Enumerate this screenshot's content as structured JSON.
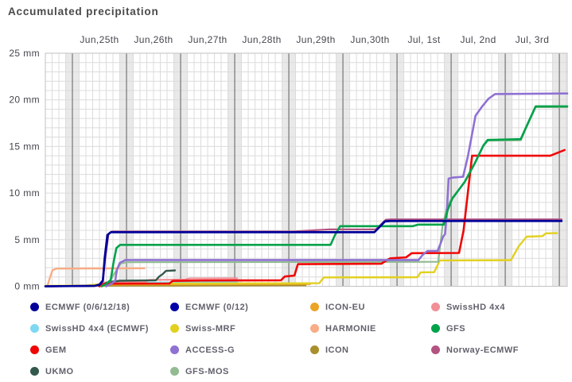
{
  "title": "Accumulated precipitation",
  "chart_data": {
    "type": "line",
    "title": "Accumulated precipitation",
    "y_unit": "mm",
    "ylim": [
      0,
      25
    ],
    "y_ticks": [
      {
        "value": 0,
        "label": "0 mm"
      },
      {
        "value": 5,
        "label": "5 mm"
      },
      {
        "value": 10,
        "label": "10 mm"
      },
      {
        "value": 15,
        "label": "15 mm"
      },
      {
        "value": 20,
        "label": "20 mm"
      },
      {
        "value": 25,
        "label": "25 mm"
      }
    ],
    "x_axis": {
      "unit": "hours_from_start",
      "range": [
        0,
        231.5
      ],
      "minor_step_hours": 3,
      "day_boundaries_hours": [
        12,
        36,
        60,
        84,
        108,
        132,
        156,
        180,
        204,
        228
      ],
      "night_band_halfwidth_hours": 3,
      "labels": [
        {
          "hour": 24,
          "text": "Jun,25th"
        },
        {
          "hour": 48,
          "text": "Jun,26th"
        },
        {
          "hour": 72,
          "text": "Jun,27th"
        },
        {
          "hour": 96,
          "text": "Jun,28th"
        },
        {
          "hour": 120,
          "text": "Jun,29th"
        },
        {
          "hour": 144,
          "text": "Jun,30th"
        },
        {
          "hour": 168,
          "text": "Jul, 1st"
        },
        {
          "hour": 192,
          "text": "Jul, 2nd"
        },
        {
          "hour": 216,
          "text": "Jul, 3rd"
        }
      ]
    },
    "grid": {
      "band_color": "#e9e9e9",
      "minor_color": "#dcdcdc",
      "day_line_color": "#5f5f5f",
      "h_color": "#dcdcdc",
      "border_color": "#c2c2c2"
    },
    "series": [
      {
        "name": "ICON",
        "color": "#a98e2c",
        "width": 2.2,
        "points": [
          [
            0,
            0
          ],
          [
            20,
            0.03
          ],
          [
            26,
            0.06
          ],
          [
            60,
            0.08
          ],
          [
            115.5,
            0.1
          ]
        ]
      },
      {
        "name": "ICON-EU",
        "color": "#eaa426",
        "width": 2.2,
        "points": [
          [
            0,
            0.02
          ],
          [
            20,
            0.06
          ],
          [
            25,
            0.12
          ],
          [
            28,
            0.18
          ],
          [
            55,
            0.2
          ],
          [
            90,
            0.23
          ],
          [
            117.5,
            0.25
          ]
        ]
      },
      {
        "name": "HARMONIE",
        "color": "#f9ac85",
        "width": 2.4,
        "points": [
          [
            0,
            0
          ],
          [
            1,
            0.1
          ],
          [
            2,
            0.9
          ],
          [
            3.2,
            1.75
          ],
          [
            5,
            1.9
          ],
          [
            44,
            1.93
          ]
        ]
      },
      {
        "name": "SwissHD 4x4 (ECMWF)",
        "color": "#7fd8f2",
        "width": 2.2,
        "points": [
          [
            0,
            0
          ],
          [
            23,
            0.05
          ],
          [
            25.5,
            0.32
          ],
          [
            28,
            0.38
          ],
          [
            60,
            0.42
          ],
          [
            85,
            0.45
          ]
        ]
      },
      {
        "name": "SwissHD 4x4",
        "color": "#f28e96",
        "width": 2.2,
        "points": [
          [
            0,
            0
          ],
          [
            23,
            0.05
          ],
          [
            25,
            0.3
          ],
          [
            26.5,
            0.42
          ],
          [
            44,
            0.45
          ],
          [
            46,
            0.68
          ],
          [
            62,
            0.72
          ],
          [
            64,
            0.84
          ],
          [
            85,
            0.86
          ]
        ]
      },
      {
        "name": "Swiss-MRF",
        "color": "#e2d01e",
        "width": 2.4,
        "points": [
          [
            0,
            0.04
          ],
          [
            18,
            0.08
          ],
          [
            24,
            0.22
          ],
          [
            30,
            0.28
          ],
          [
            60,
            0.3
          ],
          [
            121.5,
            0.33
          ],
          [
            123.5,
            0.95
          ],
          [
            165,
            0.97
          ],
          [
            166.5,
            1.5
          ],
          [
            172.5,
            1.52
          ],
          [
            175,
            2.78
          ],
          [
            206.5,
            2.8
          ],
          [
            210,
            4.3
          ],
          [
            213.5,
            5.32
          ],
          [
            220.5,
            5.38
          ],
          [
            222,
            5.68
          ],
          [
            227,
            5.7
          ]
        ]
      },
      {
        "name": "UKMO",
        "color": "#33594c",
        "width": 2.4,
        "points": [
          [
            24,
            0
          ],
          [
            26,
            0.25
          ],
          [
            28,
            0.45
          ],
          [
            33,
            0.6
          ],
          [
            49,
            0.65
          ],
          [
            50.5,
            1.05
          ],
          [
            52,
            1.3
          ],
          [
            53.5,
            1.65
          ],
          [
            57.5,
            1.7
          ]
        ]
      },
      {
        "name": "GFS-MOS",
        "color": "#92bb92",
        "width": 2.2,
        "points": [
          [
            25,
            0
          ],
          [
            28,
            0.3
          ],
          [
            31,
            1.5
          ],
          [
            33.5,
            2.45
          ],
          [
            36,
            2.58
          ],
          [
            174.3,
            2.62
          ],
          [
            176.2,
            6.5
          ],
          [
            178,
            8.3
          ],
          [
            180,
            9.35
          ],
          [
            186,
            11.15
          ],
          [
            190.5,
            13.15
          ],
          [
            194.3,
            15.05
          ],
          [
            196.3,
            15.62
          ],
          [
            210.9,
            15.66
          ],
          [
            213.5,
            17.1
          ],
          [
            217.5,
            19.22
          ],
          [
            231.5,
            19.22
          ]
        ]
      },
      {
        "name": "Norway-ECMWF",
        "color": "#b35380",
        "width": 2.2,
        "points": [
          [
            24,
            0
          ],
          [
            25.5,
            0.5
          ],
          [
            26.6,
            3.0
          ],
          [
            28,
            5.6
          ],
          [
            29.5,
            5.88
          ],
          [
            110,
            5.88
          ],
          [
            118,
            6.0
          ],
          [
            126,
            6.1
          ],
          [
            146.5,
            6.1
          ],
          [
            148.5,
            6.55
          ],
          [
            151,
            7.15
          ],
          [
            153.5,
            7.18
          ],
          [
            229,
            7.18
          ]
        ]
      },
      {
        "name": "GEM",
        "color": "#f00505",
        "width": 2.6,
        "points": [
          [
            24,
            0
          ],
          [
            25.5,
            0.2
          ],
          [
            27,
            0.28
          ],
          [
            55,
            0.3
          ],
          [
            56.5,
            0.58
          ],
          [
            70,
            0.62
          ],
          [
            104.5,
            0.65
          ],
          [
            106.2,
            1.05
          ],
          [
            110.5,
            1.15
          ],
          [
            112,
            2.38
          ],
          [
            149,
            2.42
          ],
          [
            151.5,
            2.8
          ],
          [
            153,
            3.0
          ],
          [
            160,
            3.1
          ],
          [
            162.5,
            3.55
          ],
          [
            183.5,
            3.58
          ],
          [
            185.5,
            6.0
          ],
          [
            189.3,
            14.0
          ],
          [
            224,
            14.0
          ],
          [
            230.3,
            14.62
          ]
        ]
      },
      {
        "name": "ACCESS-G",
        "color": "#8f71d3",
        "width": 2.6,
        "points": [
          [
            27,
            0
          ],
          [
            29.5,
            0.3
          ],
          [
            31,
            0.6
          ],
          [
            31.8,
            1.8
          ],
          [
            33,
            2.5
          ],
          [
            35.5,
            2.82
          ],
          [
            165.5,
            2.82
          ],
          [
            167.5,
            3.4
          ],
          [
            169.5,
            3.78
          ],
          [
            174,
            3.8
          ],
          [
            175.5,
            4.7
          ],
          [
            176.5,
            5.35
          ],
          [
            177.3,
            5.6
          ],
          [
            178,
            7.5
          ],
          [
            178.9,
            11.55
          ],
          [
            180.5,
            11.65
          ],
          [
            185.3,
            11.75
          ],
          [
            187.5,
            14.0
          ],
          [
            190.8,
            18.3
          ],
          [
            193.5,
            19.2
          ],
          [
            196.5,
            20.1
          ],
          [
            199.5,
            20.62
          ],
          [
            231.5,
            20.68
          ]
        ]
      },
      {
        "name": "GFS",
        "color": "#00a24a",
        "width": 2.6,
        "points": [
          [
            25,
            0
          ],
          [
            27,
            0.25
          ],
          [
            29,
            0.7
          ],
          [
            30.2,
            2.5
          ],
          [
            31.5,
            4.1
          ],
          [
            33.2,
            4.45
          ],
          [
            126.5,
            4.45
          ],
          [
            128.5,
            5.5
          ],
          [
            130.8,
            6.45
          ],
          [
            163,
            6.45
          ],
          [
            165.5,
            6.62
          ],
          [
            176.8,
            6.62
          ],
          [
            178.5,
            8.2
          ],
          [
            180.5,
            9.4
          ],
          [
            186,
            11.2
          ],
          [
            190.5,
            13.2
          ],
          [
            194.3,
            15.1
          ],
          [
            196.2,
            15.7
          ],
          [
            210.9,
            15.78
          ],
          [
            213.5,
            17.2
          ],
          [
            217.5,
            19.3
          ],
          [
            231.5,
            19.3
          ]
        ]
      },
      {
        "name": "ECMWF (0/12)",
        "color": "#0000a8",
        "width": 2.4,
        "points": [
          [
            0,
            0
          ],
          [
            22,
            0.05
          ],
          [
            24,
            0.2
          ],
          [
            25.5,
            0.65
          ],
          [
            26.5,
            3.2
          ],
          [
            27.8,
            5.55
          ],
          [
            29.2,
            5.82
          ],
          [
            146,
            5.82
          ],
          [
            148.2,
            6.35
          ],
          [
            150.8,
            6.98
          ],
          [
            153,
            7.02
          ],
          [
            229,
            7.02
          ]
        ]
      },
      {
        "name": "ECMWF (0/6/12/18)",
        "color": "#000099",
        "width": 2.6,
        "points": [
          [
            0,
            0
          ],
          [
            22,
            0.05
          ],
          [
            24,
            0.15
          ],
          [
            25.5,
            0.6
          ],
          [
            26.3,
            3.0
          ],
          [
            27.5,
            5.5
          ],
          [
            29,
            5.8
          ],
          [
            146,
            5.8
          ],
          [
            148,
            6.3
          ],
          [
            150.5,
            6.95
          ],
          [
            153,
            7.0
          ],
          [
            229,
            7.0
          ]
        ]
      }
    ]
  },
  "legend": {
    "items": [
      {
        "label": "ECMWF (0/6/12/18)",
        "color": "#000099"
      },
      {
        "label": "ECMWF (0/12)",
        "color": "#0000a8"
      },
      {
        "label": "ICON-EU",
        "color": "#eaa426"
      },
      {
        "label": "SwissHD 4x4",
        "color": "#f28e96"
      },
      {
        "label": "SwissHD 4x4 (ECMWF)",
        "color": "#7fd8f2"
      },
      {
        "label": "Swiss-MRF",
        "color": "#e2d01e"
      },
      {
        "label": "HARMONIE",
        "color": "#f9ac85"
      },
      {
        "label": "GFS",
        "color": "#00a24a"
      },
      {
        "label": "GEM",
        "color": "#f00505"
      },
      {
        "label": "ACCESS-G",
        "color": "#8f71d3"
      },
      {
        "label": "ICON",
        "color": "#a98e2c"
      },
      {
        "label": "Norway-ECMWF",
        "color": "#b35380"
      },
      {
        "label": "UKMO",
        "color": "#33594c"
      },
      {
        "label": "GFS-MOS",
        "color": "#92bb92"
      }
    ]
  }
}
